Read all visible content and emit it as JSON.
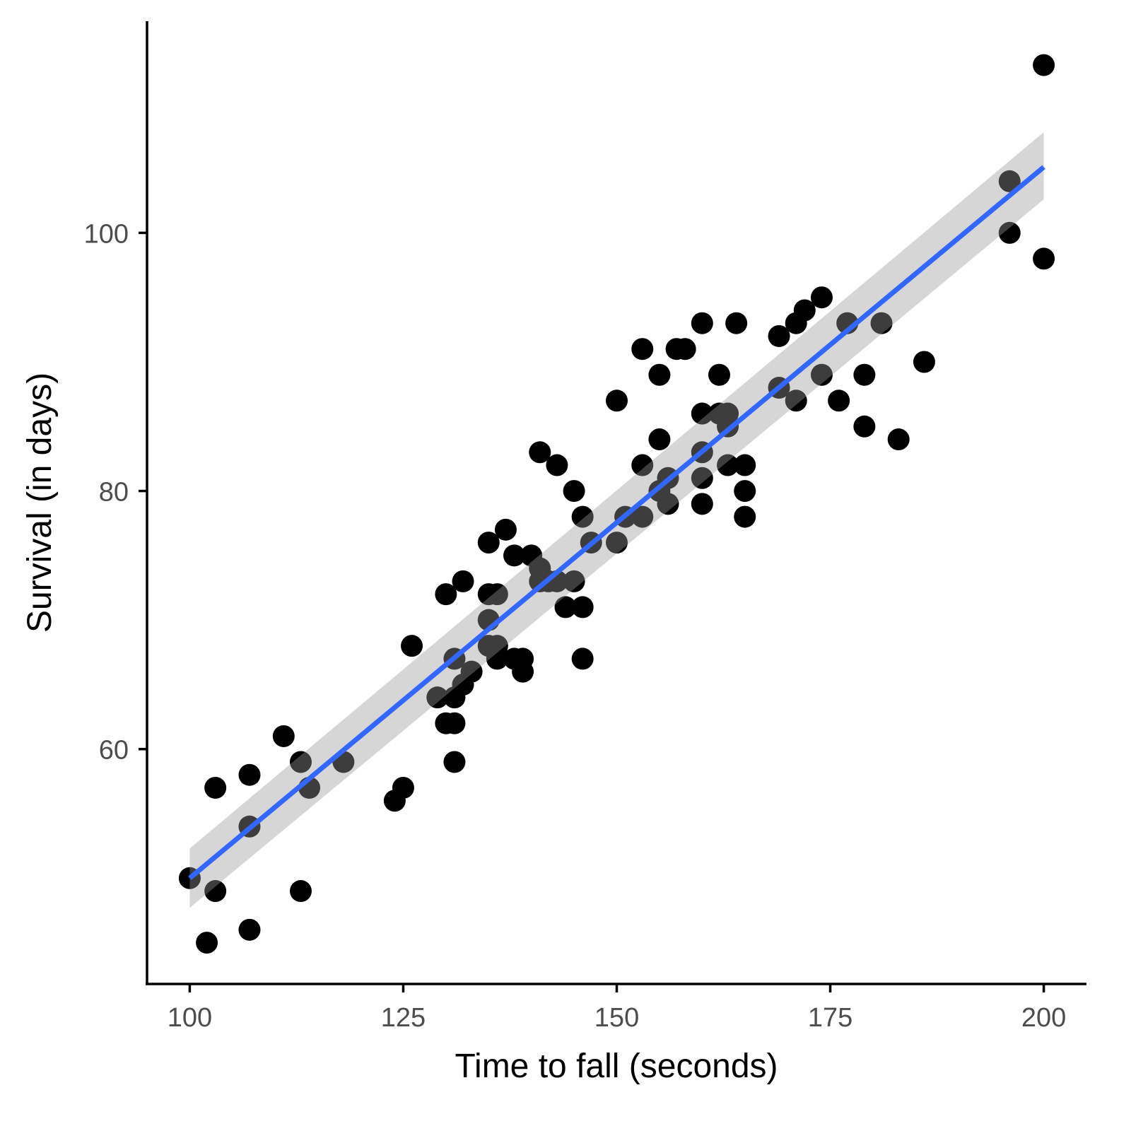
{
  "chart_data": {
    "type": "scatter",
    "title": "",
    "xlabel": "Time to fall (seconds)",
    "ylabel": "Survival (in days)",
    "xlim": [
      95,
      205
    ],
    "ylim": [
      41.8,
      116.4
    ],
    "x_ticks": [
      100,
      125,
      150,
      175,
      200
    ],
    "y_ticks": [
      60,
      80,
      100
    ],
    "x_tick_labels": [
      "100",
      "125",
      "150",
      "175",
      "200"
    ],
    "y_tick_labels": [
      "60",
      "80",
      "100"
    ],
    "grid": false,
    "legend": "none",
    "point_color": "#000000",
    "fit": {
      "type": "linear",
      "x": [
        100,
        200
      ],
      "y": [
        50.0,
        105.1
      ],
      "ci_lower": [
        47.7,
        102.6
      ],
      "ci_upper": [
        52.3,
        107.8
      ],
      "line_color": "#3366FF",
      "band_color": "#999999"
    },
    "points": [
      [
        100,
        50
      ],
      [
        102,
        45
      ],
      [
        103,
        49
      ],
      [
        103,
        57
      ],
      [
        107,
        46
      ],
      [
        107,
        58
      ],
      [
        107,
        54
      ],
      [
        111,
        61
      ],
      [
        113,
        59
      ],
      [
        113,
        49
      ],
      [
        114,
        57
      ],
      [
        118,
        59
      ],
      [
        124,
        56
      ],
      [
        125,
        57
      ],
      [
        126,
        68
      ],
      [
        129,
        64
      ],
      [
        130,
        72
      ],
      [
        130,
        62
      ],
      [
        131,
        62
      ],
      [
        131,
        64
      ],
      [
        131,
        59
      ],
      [
        131,
        67
      ],
      [
        132,
        65
      ],
      [
        132,
        73
      ],
      [
        133,
        66
      ],
      [
        135,
        76
      ],
      [
        135,
        72
      ],
      [
        135,
        70
      ],
      [
        135,
        68
      ],
      [
        136,
        72
      ],
      [
        136,
        68
      ],
      [
        136,
        67
      ],
      [
        137,
        77
      ],
      [
        138,
        75
      ],
      [
        138,
        67
      ],
      [
        139,
        67
      ],
      [
        139,
        66
      ],
      [
        140,
        75
      ],
      [
        141,
        74
      ],
      [
        141,
        73
      ],
      [
        141,
        83
      ],
      [
        142,
        73
      ],
      [
        143,
        82
      ],
      [
        143,
        73
      ],
      [
        144,
        71
      ],
      [
        145,
        80
      ],
      [
        145,
        73
      ],
      [
        146,
        78
      ],
      [
        146,
        71
      ],
      [
        146,
        67
      ],
      [
        147,
        76
      ],
      [
        150,
        76
      ],
      [
        150,
        87
      ],
      [
        151,
        78
      ],
      [
        153,
        78
      ],
      [
        153,
        82
      ],
      [
        153,
        91
      ],
      [
        155,
        80
      ],
      [
        155,
        84
      ],
      [
        155,
        89
      ],
      [
        156,
        81
      ],
      [
        156,
        79
      ],
      [
        157,
        91
      ],
      [
        158,
        91
      ],
      [
        160,
        93
      ],
      [
        160,
        86
      ],
      [
        160,
        83
      ],
      [
        160,
        81
      ],
      [
        160,
        79
      ],
      [
        162,
        89
      ],
      [
        162,
        86
      ],
      [
        163,
        86
      ],
      [
        163,
        85
      ],
      [
        163,
        82
      ],
      [
        164,
        93
      ],
      [
        165,
        82
      ],
      [
        165,
        80
      ],
      [
        165,
        78
      ],
      [
        169,
        92
      ],
      [
        169,
        88
      ],
      [
        171,
        93
      ],
      [
        171,
        87
      ],
      [
        172,
        94
      ],
      [
        174,
        95
      ],
      [
        174,
        89
      ],
      [
        176,
        87
      ],
      [
        177,
        93
      ],
      [
        179,
        89
      ],
      [
        179,
        85
      ],
      [
        181,
        93
      ],
      [
        183,
        84
      ],
      [
        186,
        90
      ],
      [
        196,
        104
      ],
      [
        196,
        100
      ],
      [
        200,
        113
      ],
      [
        200,
        98
      ]
    ]
  }
}
